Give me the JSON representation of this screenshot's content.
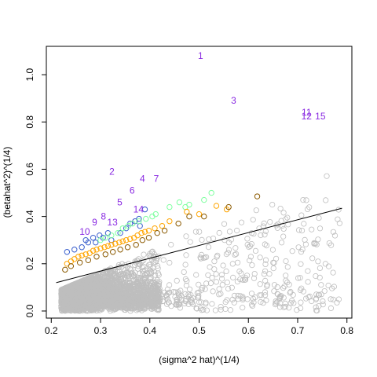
{
  "chart_data": {
    "type": "scatter",
    "xlabel": "(sigma^2 hat)^(1/4)",
    "ylabel": "(betahat^2)^(1/4)",
    "xlim": [
      0.19,
      0.81
    ],
    "ylim": [
      -0.03,
      1.12
    ],
    "x_ticks": [
      0.2,
      0.3,
      0.4,
      0.5,
      0.6,
      0.7,
      0.8
    ],
    "x_tick_labels": [
      "0.2",
      "0.3",
      "0.4",
      "0.5",
      "0.6",
      "0.7",
      "0.8"
    ],
    "y_ticks": [
      0.0,
      0.2,
      0.4,
      0.6,
      0.8,
      1.0
    ],
    "y_tick_labels": [
      "0.0",
      "0.2",
      "0.4",
      "0.6",
      "0.8",
      "1.0"
    ],
    "grid": false,
    "colors": {
      "grey": "#bebebe",
      "orange": "#ffa500",
      "brown": "#8b5a00",
      "green": "#7fffa0",
      "blue": "#3a5fcd",
      "purple": "#8a2be2",
      "line": "#000000"
    },
    "fit_line": {
      "x": [
        0.21,
        0.79
      ],
      "y": [
        0.12,
        0.435
      ]
    },
    "series": [
      {
        "color_key": "blue",
        "points": [
          [
            0.232,
            0.25
          ],
          [
            0.247,
            0.26
          ],
          [
            0.262,
            0.27
          ],
          [
            0.27,
            0.3
          ],
          [
            0.275,
            0.29
          ],
          [
            0.285,
            0.31
          ],
          [
            0.29,
            0.29
          ],
          [
            0.298,
            0.32
          ],
          [
            0.305,
            0.31
          ],
          [
            0.315,
            0.33
          ],
          [
            0.322,
            0.3
          ],
          [
            0.34,
            0.33
          ],
          [
            0.352,
            0.35
          ],
          [
            0.36,
            0.37
          ],
          [
            0.37,
            0.38
          ],
          [
            0.378,
            0.39
          ],
          [
            0.38,
            0.36
          ],
          [
            0.39,
            0.43
          ]
        ]
      },
      {
        "color_key": "green",
        "points": [
          [
            0.3,
            0.3
          ],
          [
            0.31,
            0.31
          ],
          [
            0.322,
            0.32
          ],
          [
            0.335,
            0.33
          ],
          [
            0.345,
            0.35
          ],
          [
            0.356,
            0.36
          ],
          [
            0.365,
            0.37
          ],
          [
            0.378,
            0.38
          ],
          [
            0.392,
            0.39
          ],
          [
            0.405,
            0.4
          ],
          [
            0.412,
            0.41
          ],
          [
            0.44,
            0.44
          ],
          [
            0.46,
            0.46
          ],
          [
            0.472,
            0.44
          ],
          [
            0.48,
            0.45
          ],
          [
            0.51,
            0.47
          ],
          [
            0.525,
            0.5
          ]
        ]
      },
      {
        "color_key": "orange",
        "points": [
          [
            0.232,
            0.2
          ],
          [
            0.24,
            0.21
          ],
          [
            0.247,
            0.22
          ],
          [
            0.255,
            0.23
          ],
          [
            0.262,
            0.235
          ],
          [
            0.27,
            0.24
          ],
          [
            0.278,
            0.245
          ],
          [
            0.285,
            0.255
          ],
          [
            0.292,
            0.26
          ],
          [
            0.3,
            0.265
          ],
          [
            0.308,
            0.27
          ],
          [
            0.315,
            0.275
          ],
          [
            0.322,
            0.28
          ],
          [
            0.33,
            0.285
          ],
          [
            0.338,
            0.29
          ],
          [
            0.345,
            0.295
          ],
          [
            0.352,
            0.3
          ],
          [
            0.36,
            0.305
          ],
          [
            0.368,
            0.31
          ],
          [
            0.375,
            0.32
          ],
          [
            0.383,
            0.33
          ],
          [
            0.39,
            0.335
          ],
          [
            0.398,
            0.34
          ],
          [
            0.41,
            0.35
          ],
          [
            0.425,
            0.36
          ],
          [
            0.44,
            0.38
          ],
          [
            0.475,
            0.42
          ],
          [
            0.5,
            0.41
          ],
          [
            0.535,
            0.445
          ],
          [
            0.556,
            0.43
          ]
        ]
      },
      {
        "color_key": "brown",
        "points": [
          [
            0.228,
            0.175
          ],
          [
            0.24,
            0.19
          ],
          [
            0.258,
            0.205
          ],
          [
            0.275,
            0.215
          ],
          [
            0.292,
            0.23
          ],
          [
            0.31,
            0.24
          ],
          [
            0.325,
            0.25
          ],
          [
            0.34,
            0.26
          ],
          [
            0.355,
            0.27
          ],
          [
            0.372,
            0.28
          ],
          [
            0.385,
            0.3
          ],
          [
            0.398,
            0.31
          ],
          [
            0.415,
            0.33
          ],
          [
            0.43,
            0.34
          ],
          [
            0.458,
            0.37
          ],
          [
            0.48,
            0.4
          ],
          [
            0.51,
            0.4
          ],
          [
            0.56,
            0.44
          ],
          [
            0.618,
            0.485
          ]
        ]
      }
    ],
    "labeled_points": [
      {
        "label": "1",
        "x": 0.503,
        "y": 1.08
      },
      {
        "label": "2",
        "x": 0.323,
        "y": 0.59
      },
      {
        "label": "3",
        "x": 0.57,
        "y": 0.89
      },
      {
        "label": "4",
        "x": 0.385,
        "y": 0.56
      },
      {
        "label": "5",
        "x": 0.339,
        "y": 0.46
      },
      {
        "label": "6",
        "x": 0.364,
        "y": 0.51
      },
      {
        "label": "7",
        "x": 0.413,
        "y": 0.56
      },
      {
        "label": "8",
        "x": 0.306,
        "y": 0.4
      },
      {
        "label": "9",
        "x": 0.288,
        "y": 0.375
      },
      {
        "label": "10",
        "x": 0.268,
        "y": 0.335
      },
      {
        "label": "11",
        "x": 0.718,
        "y": 0.84
      },
      {
        "label": "12",
        "x": 0.718,
        "y": 0.825
      },
      {
        "label": "13",
        "x": 0.324,
        "y": 0.375
      },
      {
        "label": "14",
        "x": 0.377,
        "y": 0.43
      },
      {
        "label": "15",
        "x": 0.746,
        "y": 0.825
      }
    ],
    "background_cloud": {
      "color_key": "grey",
      "n": 3800,
      "seed": 7
    }
  }
}
